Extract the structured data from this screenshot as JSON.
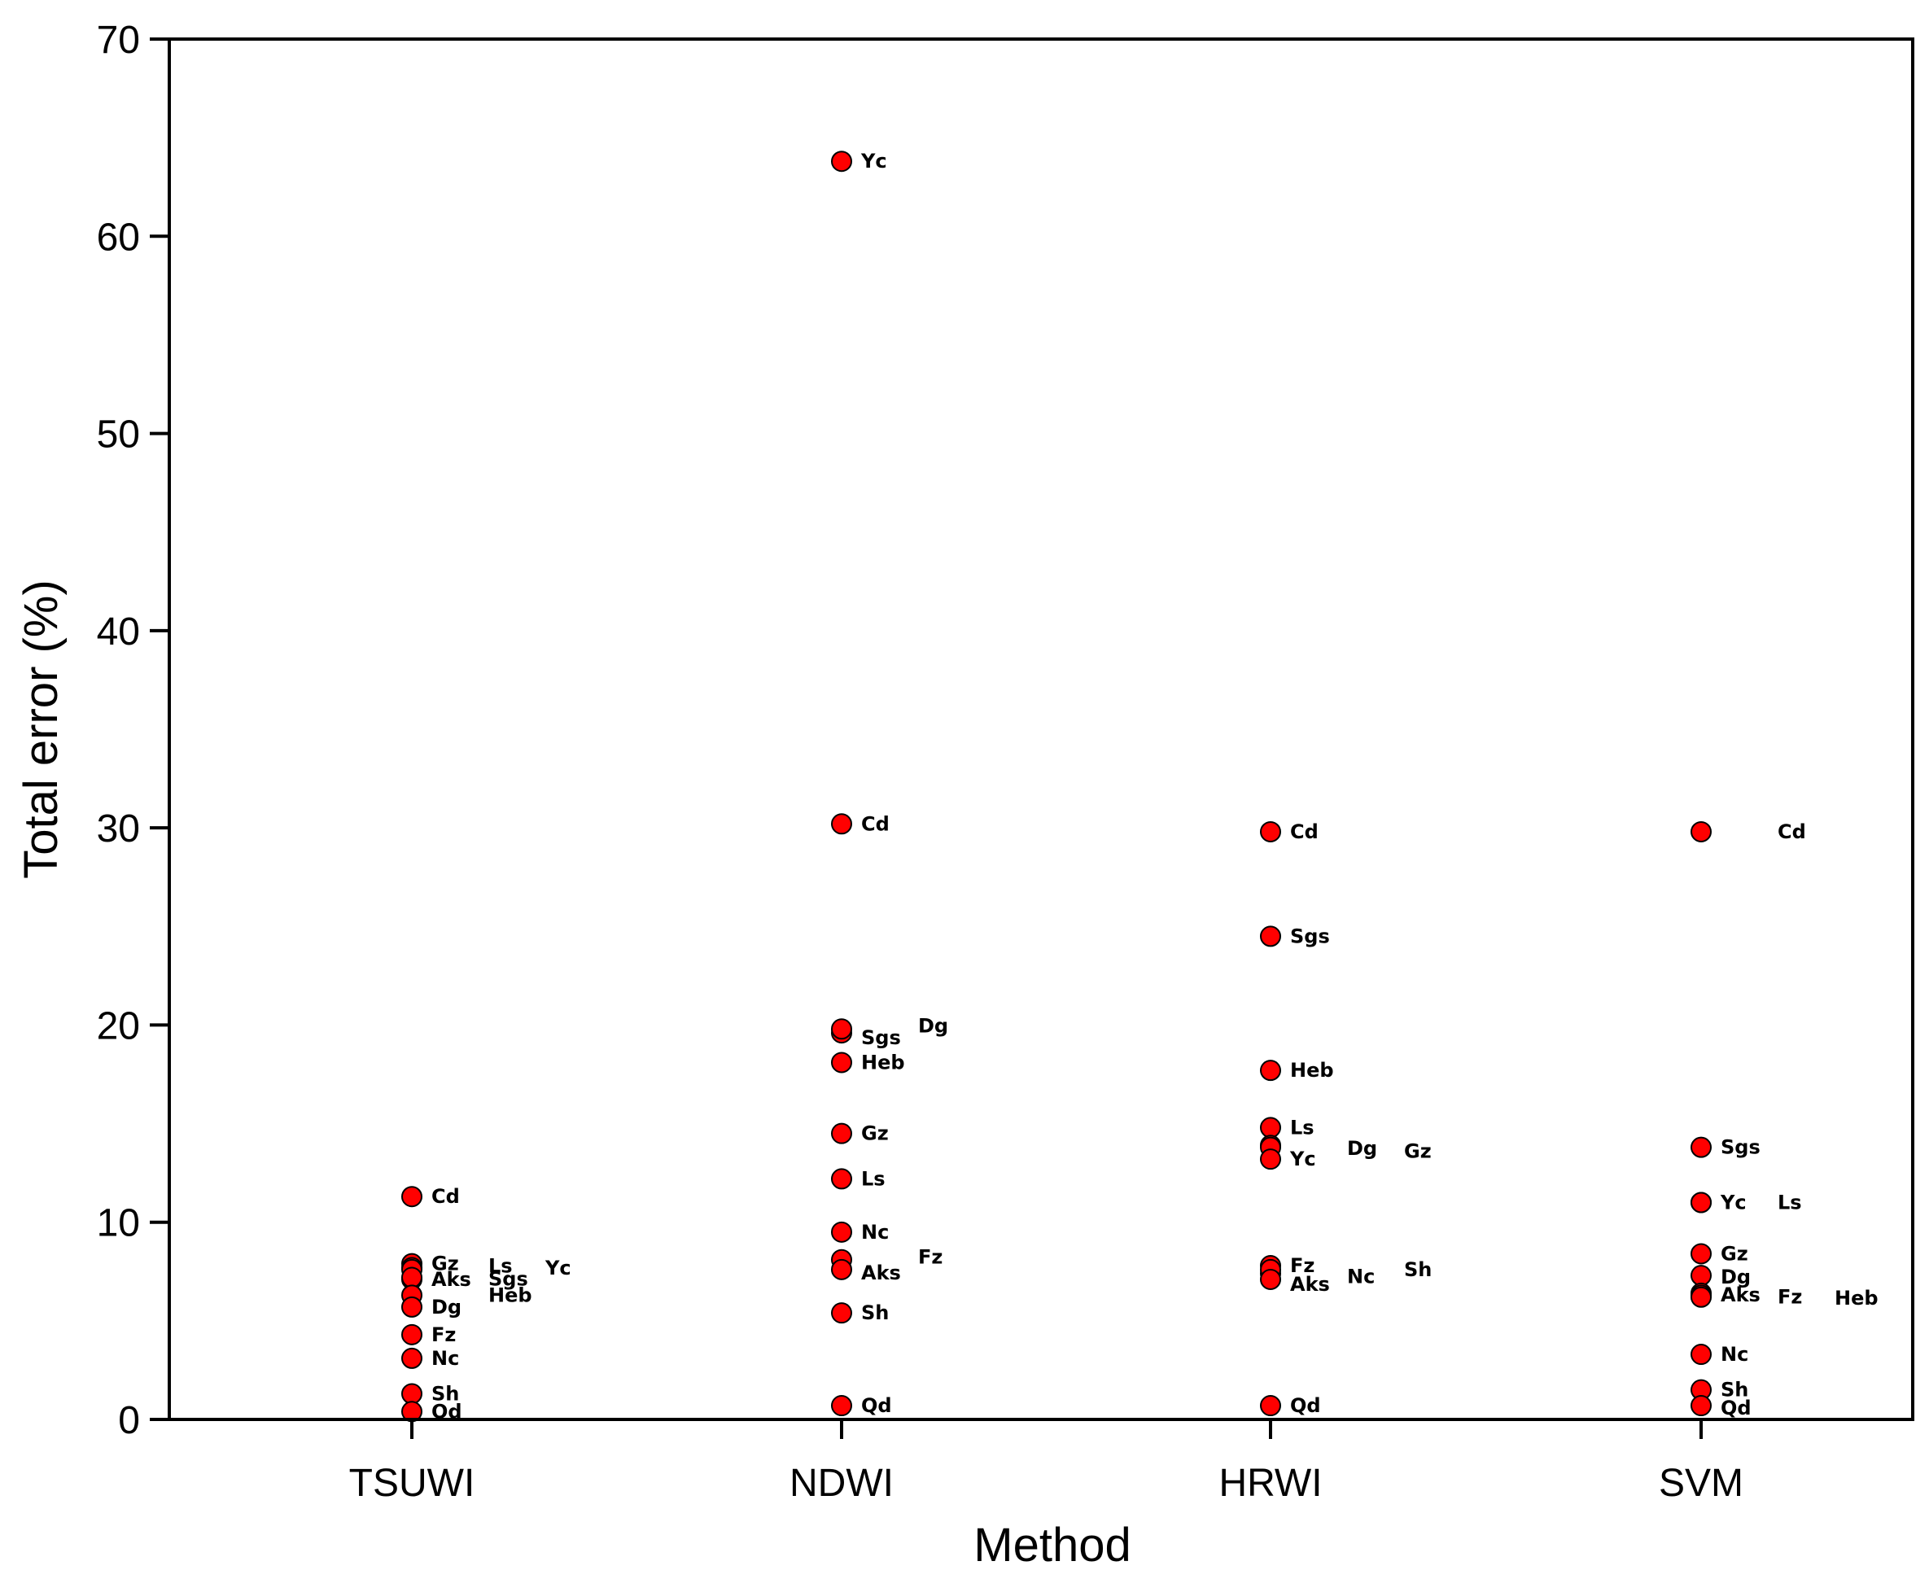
{
  "chart_data": {
    "type": "scatter",
    "title": "",
    "xlabel": "Method",
    "ylabel": "Total error (%)",
    "categories": [
      "TSUWI",
      "NDWI",
      "HRWI",
      "SVM"
    ],
    "ylim": [
      0,
      70
    ],
    "yticks": [
      0,
      10,
      20,
      30,
      40,
      50,
      60,
      70
    ],
    "grid": false,
    "legend": "none",
    "marker_color": "#ff0000",
    "marker_edge_color": "#000000",
    "series": [
      {
        "name": "TSUWI",
        "points": [
          {
            "label": "Cd",
            "value": 11.3
          },
          {
            "label": "Gz",
            "value": 7.9
          },
          {
            "label": "Ls",
            "value": 7.7
          },
          {
            "label": "Yc",
            "value": 7.6
          },
          {
            "label": "Aks",
            "value": 7.1
          },
          {
            "label": "Sgs",
            "value": 7.2
          },
          {
            "label": "Heb",
            "value": 6.3
          },
          {
            "label": "Dg",
            "value": 5.7
          },
          {
            "label": "Fz",
            "value": 4.3
          },
          {
            "label": "Nc",
            "value": 3.1
          },
          {
            "label": "Sh",
            "value": 1.3
          },
          {
            "label": "Qd",
            "value": 0.4
          }
        ]
      },
      {
        "name": "NDWI",
        "points": [
          {
            "label": "Yc",
            "value": 63.8
          },
          {
            "label": "Cd",
            "value": 30.2
          },
          {
            "label": "Sgs",
            "value": 19.6
          },
          {
            "label": "Dg",
            "value": 19.8
          },
          {
            "label": "Heb",
            "value": 18.1
          },
          {
            "label": "Gz",
            "value": 14.5
          },
          {
            "label": "Ls",
            "value": 12.2
          },
          {
            "label": "Nc",
            "value": 9.5
          },
          {
            "label": "Fz",
            "value": 8.1
          },
          {
            "label": "Aks",
            "value": 7.6
          },
          {
            "label": "Sh",
            "value": 5.4
          },
          {
            "label": "Qd",
            "value": 0.7
          }
        ]
      },
      {
        "name": "HRWI",
        "points": [
          {
            "label": "Cd",
            "value": 29.8
          },
          {
            "label": "Sgs",
            "value": 24.5
          },
          {
            "label": "Heb",
            "value": 17.7
          },
          {
            "label": "Ls",
            "value": 14.8
          },
          {
            "label": "Dg",
            "value": 13.9
          },
          {
            "label": "Gz",
            "value": 13.8
          },
          {
            "label": "Yc",
            "value": 13.2
          },
          {
            "label": "Fz",
            "value": 7.8
          },
          {
            "label": "Nc",
            "value": 7.4
          },
          {
            "label": "Sh",
            "value": 7.6
          },
          {
            "label": "Aks",
            "value": 7.1
          },
          {
            "label": "Qd",
            "value": 0.7
          }
        ]
      },
      {
        "name": "SVM",
        "points": [
          {
            "label": "Cd",
            "value": 29.8
          },
          {
            "label": "Sgs",
            "value": 13.8
          },
          {
            "label": "Yc",
            "value": 11.0
          },
          {
            "label": "Ls",
            "value": 11.0
          },
          {
            "label": "Gz",
            "value": 8.4
          },
          {
            "label": "Dg",
            "value": 7.3
          },
          {
            "label": "Aks",
            "value": 6.4
          },
          {
            "label": "Fz",
            "value": 6.3
          },
          {
            "label": "Heb",
            "value": 6.2
          },
          {
            "label": "Nc",
            "value": 3.3
          },
          {
            "label": "Sh",
            "value": 1.5
          },
          {
            "label": "Qd",
            "value": 0.7
          }
        ]
      }
    ]
  }
}
